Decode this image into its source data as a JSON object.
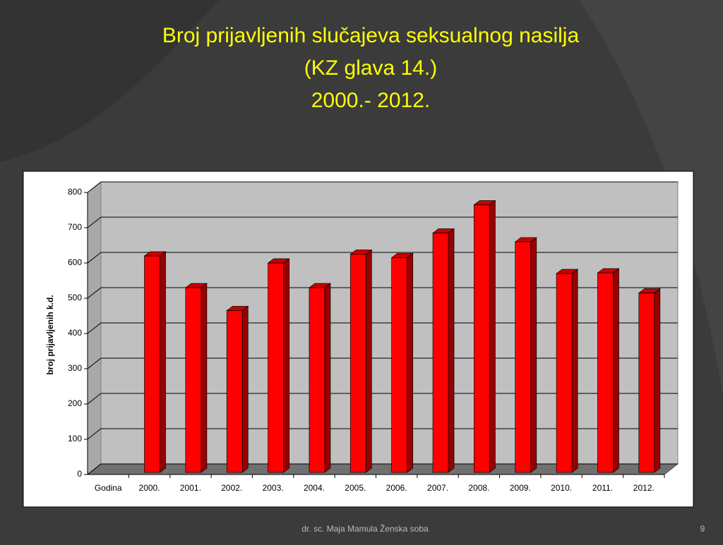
{
  "chart_data": {
    "type": "bar3d",
    "title": [
      "Broj prijavljenih slučajeva seksualnog nasilja",
      "(KZ glava 14.)",
      "2000.- 2012."
    ],
    "y_label": "broj prijavljenih k.d.",
    "categories": [
      "Godina",
      "2000.",
      "2001.",
      "2002.",
      "2003.",
      "2004.",
      "2005.",
      "2006.",
      "2007.",
      "2008.",
      "2009.",
      "2010.",
      "2011.",
      "2012."
    ],
    "values": [
      null,
      620,
      530,
      465,
      600,
      530,
      625,
      615,
      685,
      765,
      660,
      570,
      572,
      515
    ],
    "color": "#ff0000",
    "ylim": [
      0,
      800
    ],
    "yticks": [
      0,
      100,
      200,
      300,
      400,
      500,
      600,
      700,
      800
    ],
    "grid": true
  },
  "footer": {
    "text": "dr. sc. Maja Mamula  Ženska soba",
    "page": "9"
  }
}
